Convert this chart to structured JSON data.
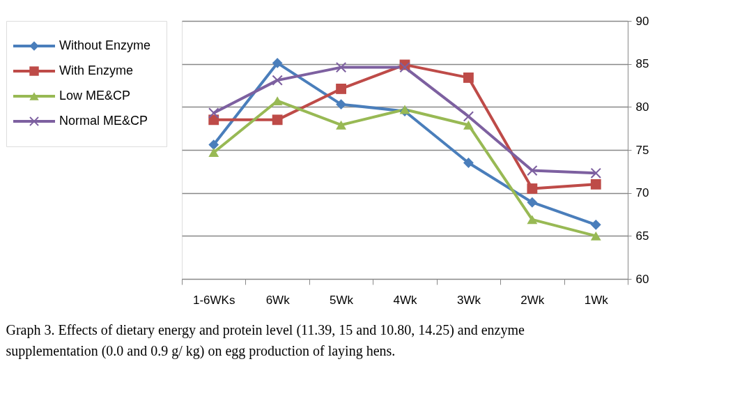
{
  "chart_data": {
    "type": "line",
    "categories": [
      "1-6WKs",
      "6Wk",
      "5Wk",
      "4Wk",
      "3Wk",
      "2Wk",
      "1Wk"
    ],
    "series": [
      {
        "name": "Without Enzyme",
        "color": "#4a7ebb",
        "marker": "diamond",
        "values": [
          75.6,
          85.1,
          80.3,
          79.5,
          73.5,
          68.9,
          66.3
        ]
      },
      {
        "name": "With Enzyme",
        "color": "#be4b48",
        "marker": "square",
        "values": [
          78.5,
          78.5,
          82.1,
          84.9,
          83.4,
          70.5,
          71.0
        ]
      },
      {
        "name": "Low ME&CP",
        "color": "#98b954",
        "marker": "triangle",
        "values": [
          74.7,
          80.7,
          77.9,
          79.7,
          77.9,
          66.9,
          65.0
        ]
      },
      {
        "name": "Normal ME&CP",
        "color": "#7d60a0",
        "marker": "cross",
        "values": [
          79.3,
          83.1,
          84.6,
          84.6,
          78.9,
          72.6,
          72.3
        ]
      }
    ],
    "ylim": [
      60,
      90
    ],
    "yticks": [
      60,
      65,
      70,
      75,
      80,
      85,
      90
    ],
    "grid": "y",
    "legend": "left",
    "line_style": "solid",
    "annotations": [
      "Graph 3. Effects of dietary energy and protein level (11.39, 15 and 10.80, 14.25) and enzyme supplementation (0.0 and 0.9 g/ kg) on egg production of laying hens."
    ]
  }
}
